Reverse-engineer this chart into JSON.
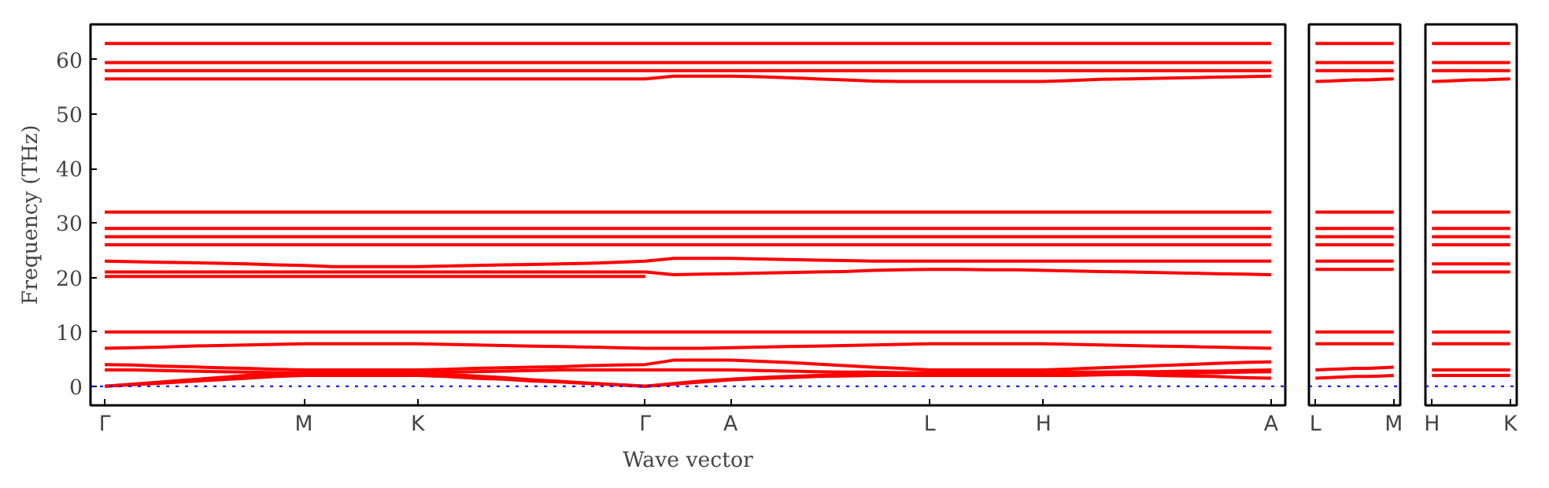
{
  "chart_data": [
    {
      "type": "line",
      "xlabel": "Wave vector",
      "ylabel": "Frequency (THz)",
      "ylim": [
        -3.5,
        66.5
      ],
      "categories": [
        "Γ",
        null,
        null,
        null,
        null,
        null,
        null,
        "M",
        null,
        null,
        null,
        "K",
        null,
        null,
        null,
        null,
        null,
        null,
        null,
        "Γ",
        null,
        null,
        "A",
        null,
        null,
        null,
        null,
        null,
        null,
        "L",
        null,
        null,
        null,
        "H",
        null,
        null,
        null,
        null,
        null,
        null,
        null,
        "A"
      ],
      "yticks": [
        0,
        10,
        20,
        30,
        40,
        50,
        60
      ],
      "grid": false,
      "line_style": "solid",
      "ref_lines": [
        {
          "axis": "y",
          "value": 0,
          "color": "#0000ff",
          "line_style": "dotted"
        }
      ],
      "series": [
        {
          "color": "#ff0000",
          "values": [
            63,
            63,
            63,
            63,
            63,
            63,
            63,
            63,
            63,
            63,
            63,
            63,
            63,
            63,
            63,
            63,
            63,
            63,
            63,
            63,
            63,
            63,
            63,
            63,
            63,
            63,
            63,
            63,
            63,
            63,
            63,
            63,
            63,
            63,
            63,
            63,
            63,
            63,
            63,
            63,
            63,
            63
          ]
        },
        {
          "color": "#ff0000",
          "values": [
            59.5,
            59.5,
            59.5,
            59.5,
            59.5,
            59.5,
            59.5,
            59.5,
            59.5,
            59.5,
            59.5,
            59.5,
            59.5,
            59.5,
            59.5,
            59.5,
            59.5,
            59.5,
            59.5,
            59.5,
            59.5,
            59.5,
            59.5,
            59.5,
            59.5,
            59.5,
            59.5,
            59.5,
            59.5,
            59.5,
            59.5,
            59.5,
            59.5,
            59.5,
            59.5,
            59.5,
            59.5,
            59.5,
            59.5,
            59.5,
            59.5,
            59.5
          ]
        },
        {
          "color": "#ff0000",
          "values": [
            58,
            58,
            58,
            58,
            58,
            58,
            58,
            58,
            58,
            58,
            58,
            58,
            58,
            58,
            58,
            58,
            58,
            58,
            58,
            58,
            58,
            58,
            58,
            58,
            58,
            58,
            58,
            58,
            58,
            58,
            58,
            58,
            58,
            58,
            58,
            58,
            58,
            58,
            58,
            58,
            58,
            58
          ]
        },
        {
          "color": "#ff0000",
          "values": [
            56.5,
            56.5,
            56.5,
            56.5,
            56.5,
            56.5,
            56.5,
            56.5,
            56.5,
            56.5,
            56.5,
            56.5,
            56.5,
            56.5,
            56.5,
            56.5,
            56.5,
            56.5,
            56.5,
            56.5,
            57,
            57,
            57,
            56.9,
            56.7,
            56.5,
            56.3,
            56.1,
            56,
            56,
            56,
            56,
            56,
            56,
            56.2,
            56.4,
            56.5,
            56.6,
            56.7,
            56.8,
            56.9,
            57
          ]
        },
        {
          "color": "#ff0000",
          "values": [
            32,
            32,
            32,
            32,
            32,
            32,
            32,
            32,
            32,
            32,
            32,
            32,
            32,
            32,
            32,
            32,
            32,
            32,
            32,
            32,
            32,
            32,
            32,
            32,
            32,
            32,
            32,
            32,
            32,
            32,
            32,
            32,
            32,
            32,
            32,
            32,
            32,
            32,
            32,
            32,
            32,
            32
          ]
        },
        {
          "color": "#ff0000",
          "values": [
            29,
            29,
            29,
            29,
            29,
            29,
            29,
            29,
            29,
            29,
            29,
            29,
            29,
            29,
            29,
            29,
            29,
            29,
            29,
            29,
            29,
            29,
            29,
            29,
            29,
            29,
            29,
            29,
            29,
            29,
            29,
            29,
            29,
            29,
            29,
            29,
            29,
            29,
            29,
            29,
            29,
            29
          ]
        },
        {
          "color": "#ff0000",
          "values": [
            27.5,
            27.5,
            27.5,
            27.5,
            27.5,
            27.5,
            27.5,
            27.5,
            27.5,
            27.5,
            27.5,
            27.5,
            27.5,
            27.5,
            27.5,
            27.5,
            27.5,
            27.5,
            27.5,
            27.5,
            27.5,
            27.5,
            27.5,
            27.5,
            27.5,
            27.5,
            27.5,
            27.5,
            27.5,
            27.5,
            27.5,
            27.5,
            27.5,
            27.5,
            27.5,
            27.5,
            27.5,
            27.5,
            27.5,
            27.5,
            27.5,
            27.5
          ]
        },
        {
          "color": "#ff0000",
          "values": [
            26,
            26,
            26,
            26,
            26,
            26,
            26,
            26,
            26,
            26,
            26,
            26,
            26,
            26,
            26,
            26,
            26,
            26,
            26,
            26,
            26,
            26,
            26,
            26,
            26,
            26,
            26,
            26,
            26,
            26,
            26,
            26,
            26,
            26,
            26,
            26,
            26,
            26,
            26,
            26,
            26,
            26
          ]
        },
        {
          "color": "#ff0000",
          "values": [
            23,
            22.9,
            22.8,
            22.7,
            22.6,
            22.5,
            22.3,
            22.2,
            22,
            22,
            22,
            22,
            22.1,
            22.2,
            22.3,
            22.4,
            22.5,
            22.6,
            22.8,
            23,
            23.5,
            23.5,
            23.5,
            23.4,
            23.3,
            23.2,
            23.1,
            23,
            23,
            23,
            23,
            23,
            23,
            23,
            23,
            23,
            23,
            23,
            23,
            23,
            23,
            23
          ]
        },
        {
          "color": "#ff0000",
          "values": [
            21,
            21,
            21,
            21,
            21,
            21,
            21,
            21,
            21,
            21,
            21,
            21,
            21,
            21,
            21,
            21,
            21,
            21,
            21,
            21,
            20.5,
            20.6,
            20.7,
            20.8,
            20.9,
            21,
            21.1,
            21.3,
            21.4,
            21.5,
            21.5,
            21.4,
            21.4,
            21.3,
            21.2,
            21.1,
            21,
            20.9,
            20.8,
            20.7,
            20.6,
            20.5
          ]
        },
        {
          "color": "#ff0000",
          "values": [
            20.2,
            20.2,
            20.2,
            20.2,
            20.2,
            20.2,
            20.2,
            20.2,
            20.2,
            20.2,
            20.2,
            20.2,
            20.2,
            20.2,
            20.2,
            20.2,
            20.2,
            20.2,
            20.2,
            20.2,
            null,
            null,
            null,
            null,
            null,
            null,
            null,
            null,
            null,
            null,
            null,
            null,
            null,
            null,
            null,
            null,
            null,
            null,
            null,
            null,
            null,
            null
          ]
        },
        {
          "color": "#ff0000",
          "values": [
            10,
            10,
            10,
            10,
            10,
            10,
            10,
            10,
            10,
            10,
            10,
            10,
            10,
            10,
            10,
            10,
            10,
            10,
            10,
            10,
            10,
            10,
            10,
            10,
            10,
            10,
            10,
            10,
            10,
            10,
            10,
            10,
            10,
            10,
            10,
            10,
            10,
            10,
            10,
            10,
            10,
            10
          ]
        },
        {
          "color": "#ff0000",
          "values": [
            7,
            7.1,
            7.2,
            7.4,
            7.5,
            7.6,
            7.7,
            7.8,
            7.8,
            7.8,
            7.8,
            7.8,
            7.7,
            7.6,
            7.5,
            7.4,
            7.3,
            7.2,
            7.1,
            7,
            7,
            7,
            7.1,
            7.2,
            7.3,
            7.4,
            7.5,
            7.6,
            7.7,
            7.8,
            7.8,
            7.8,
            7.8,
            7.8,
            7.7,
            7.6,
            7.5,
            7.4,
            7.3,
            7.2,
            7.1,
            7
          ]
        },
        {
          "color": "#ff0000",
          "values": [
            4,
            3.9,
            3.7,
            3.6,
            3.4,
            3.3,
            3.1,
            3,
            3,
            3,
            3,
            3,
            3.1,
            3.3,
            3.4,
            3.5,
            3.6,
            3.8,
            3.9,
            4,
            4.8,
            4.8,
            4.8,
            4.6,
            4.4,
            4.1,
            3.8,
            3.5,
            3.3,
            3,
            3,
            3,
            3,
            3,
            3.2,
            3.4,
            3.6,
            3.8,
            4,
            4.2,
            4.4,
            4.5
          ]
        },
        {
          "color": "#ff0000",
          "values": [
            3,
            3,
            2.9,
            2.8,
            2.7,
            2.6,
            2.5,
            2.5,
            2.5,
            2.5,
            2.5,
            2.5,
            2.6,
            2.7,
            2.8,
            2.9,
            3,
            3,
            3,
            3,
            3,
            3,
            3,
            2.9,
            2.8,
            2.7,
            2.6,
            2.6,
            2.5,
            2.5,
            2.5,
            2.5,
            2.5,
            2.5,
            2.6,
            2.6,
            2.7,
            2.7,
            2.8,
            2.8,
            2.9,
            3
          ]
        },
        {
          "color": "#ff0000",
          "values": [
            0,
            0.4,
            0.8,
            1.2,
            1.6,
            2,
            2.3,
            2.5,
            2.5,
            2.5,
            2.5,
            2.5,
            2.2,
            1.9,
            1.6,
            1.2,
            0.9,
            0.6,
            0.3,
            0,
            0.5,
            1,
            1.3,
            1.6,
            1.8,
            2,
            2.2,
            2.3,
            2.4,
            2.5,
            2.5,
            2.5,
            2.5,
            2.5,
            2.4,
            2.3,
            2.2,
            2,
            1.9,
            1.8,
            1.6,
            1.5
          ]
        },
        {
          "color": "#ff0000",
          "values": [
            0,
            0.3,
            0.6,
            0.9,
            1.2,
            1.5,
            1.8,
            2,
            2,
            2,
            2,
            2,
            1.8,
            1.5,
            1.3,
            1,
            0.8,
            0.5,
            0.3,
            0,
            0.4,
            0.8,
            1.2,
            1.4,
            1.6,
            1.8,
            1.9,
            2,
            2,
            2,
            2,
            2,
            2,
            2,
            2,
            2.1,
            2.2,
            2.3,
            2.4,
            2.5,
            2.6,
            2.7
          ]
        }
      ]
    },
    {
      "type": "line",
      "ylim": [
        -3.5,
        66.5
      ],
      "tick_labels": "x",
      "categories": [
        "L",
        null,
        null,
        null,
        null,
        null,
        "M"
      ],
      "yticks": [
        0,
        10,
        20,
        30,
        40,
        50,
        60
      ],
      "grid": false,
      "line_style": "solid",
      "ref_lines": [
        {
          "axis": "y",
          "value": 0,
          "color": "#0000ff",
          "line_style": "dotted"
        }
      ],
      "series": [
        {
          "color": "#ff0000",
          "values": [
            63,
            63,
            63,
            63,
            63,
            63,
            63
          ]
        },
        {
          "color": "#ff0000",
          "values": [
            59.5,
            59.5,
            59.5,
            59.5,
            59.5,
            59.5,
            59.5
          ]
        },
        {
          "color": "#ff0000",
          "values": [
            58,
            58,
            58,
            58,
            58,
            58,
            58
          ]
        },
        {
          "color": "#ff0000",
          "values": [
            56,
            56.1,
            56.2,
            56.3,
            56.3,
            56.4,
            56.5
          ]
        },
        {
          "color": "#ff0000",
          "values": [
            32,
            32,
            32,
            32,
            32,
            32,
            32
          ]
        },
        {
          "color": "#ff0000",
          "values": [
            29,
            29,
            29,
            29,
            29,
            29,
            29
          ]
        },
        {
          "color": "#ff0000",
          "values": [
            27.5,
            27.5,
            27.5,
            27.5,
            27.5,
            27.5,
            27.5
          ]
        },
        {
          "color": "#ff0000",
          "values": [
            26,
            26,
            26,
            26,
            26,
            26,
            26
          ]
        },
        {
          "color": "#ff0000",
          "values": [
            23,
            23,
            23,
            23,
            23,
            23,
            23
          ]
        },
        {
          "color": "#ff0000",
          "values": [
            21.5,
            21.5,
            21.5,
            21.5,
            21.5,
            21.5,
            21.5
          ]
        },
        {
          "color": "#ff0000",
          "values": [
            10,
            10,
            10,
            10,
            10,
            10,
            10
          ]
        },
        {
          "color": "#ff0000",
          "values": [
            7.8,
            7.8,
            7.8,
            7.8,
            7.8,
            7.8,
            7.8
          ]
        },
        {
          "color": "#ff0000",
          "values": [
            3,
            3.1,
            3.2,
            3.3,
            3.3,
            3.4,
            3.5
          ]
        },
        {
          "color": "#ff0000",
          "values": [
            1.5,
            1.6,
            1.7,
            1.8,
            1.8,
            1.9,
            2
          ]
        }
      ]
    },
    {
      "type": "line",
      "ylim": [
        -3.5,
        66.5
      ],
      "tick_labels": "x",
      "categories": [
        "H",
        null,
        null,
        null,
        null,
        null,
        "K"
      ],
      "yticks": [
        0,
        10,
        20,
        30,
        40,
        50,
        60
      ],
      "grid": false,
      "line_style": "solid",
      "ref_lines": [
        {
          "axis": "y",
          "value": 0,
          "color": "#0000ff",
          "line_style": "dotted"
        }
      ],
      "series": [
        {
          "color": "#ff0000",
          "values": [
            63,
            63,
            63,
            63,
            63,
            63,
            63
          ]
        },
        {
          "color": "#ff0000",
          "values": [
            59.5,
            59.5,
            59.5,
            59.5,
            59.5,
            59.5,
            59.5
          ]
        },
        {
          "color": "#ff0000",
          "values": [
            58,
            58,
            58,
            58,
            58,
            58,
            58
          ]
        },
        {
          "color": "#ff0000",
          "values": [
            56,
            56.1,
            56.2,
            56.3,
            56.3,
            56.4,
            56.5
          ]
        },
        {
          "color": "#ff0000",
          "values": [
            32,
            32,
            32,
            32,
            32,
            32,
            32
          ]
        },
        {
          "color": "#ff0000",
          "values": [
            29,
            29,
            29,
            29,
            29,
            29,
            29
          ]
        },
        {
          "color": "#ff0000",
          "values": [
            27.5,
            27.5,
            27.5,
            27.5,
            27.5,
            27.5,
            27.5
          ]
        },
        {
          "color": "#ff0000",
          "values": [
            26,
            26,
            26,
            26,
            26,
            26,
            26
          ]
        },
        {
          "color": "#ff0000",
          "values": [
            22.5,
            22.5,
            22.5,
            22.5,
            22.5,
            22.5,
            22.5
          ]
        },
        {
          "color": "#ff0000",
          "values": [
            21,
            21,
            21,
            21,
            21,
            21,
            21
          ]
        },
        {
          "color": "#ff0000",
          "values": [
            10,
            10,
            10,
            10,
            10,
            10,
            10
          ]
        },
        {
          "color": "#ff0000",
          "values": [
            7.8,
            7.8,
            7.8,
            7.8,
            7.8,
            7.8,
            7.8
          ]
        },
        {
          "color": "#ff0000",
          "values": [
            3,
            3,
            3,
            3,
            3,
            3,
            3
          ]
        },
        {
          "color": "#ff0000",
          "values": [
            2,
            2,
            2,
            2,
            2,
            2,
            2
          ]
        }
      ]
    }
  ]
}
